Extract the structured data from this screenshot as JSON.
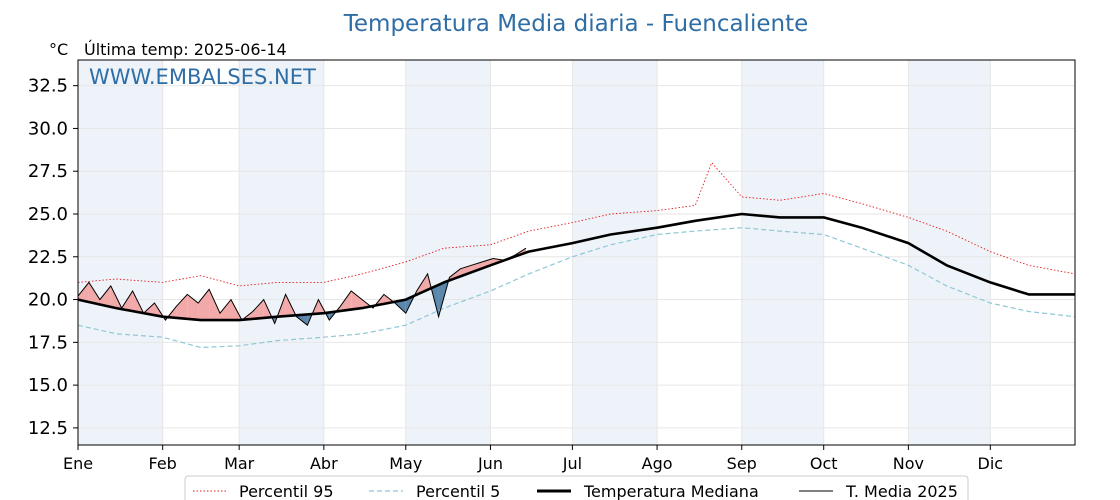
{
  "chart_data": {
    "type": "line",
    "title": "Temperatura Media diaria - Fuencaliente",
    "ylabel": "°C",
    "last_update": "Última temp: 2025-06-14",
    "watermark": "WWW.EMBALSES.NET",
    "ylim": [
      11.5,
      34.0
    ],
    "yticks": [
      "12.5",
      "15.0",
      "17.5",
      "20.0",
      "22.5",
      "25.0",
      "27.5",
      "30.0",
      "32.5"
    ],
    "ytick_values": [
      12.5,
      15.0,
      17.5,
      20.0,
      22.5,
      25.0,
      27.5,
      30.0,
      32.5
    ],
    "xlim": [
      1,
      366
    ],
    "months": [
      "Ene",
      "Feb",
      "Mar",
      "Abr",
      "May",
      "Jun",
      "Jul",
      "Ago",
      "Sep",
      "Oct",
      "Nov",
      "Dic"
    ],
    "month_start_days": [
      1,
      32,
      60,
      91,
      121,
      152,
      182,
      213,
      244,
      274,
      305,
      335
    ],
    "grid": true,
    "legend_position": "bottom-center",
    "shade_rule": "red fill where T. Media 2025 is above Temperatura Mediana, blue fill where below",
    "colors": {
      "title": "#2f6ea5",
      "band": "#eef3f9",
      "p95": "#e31a1c",
      "p5": "#8ec8d6",
      "median": "#000000",
      "current": "#000000",
      "above": "#f2a9a9",
      "below": "#5b87ad"
    },
    "series": [
      {
        "name": "Percentil 95",
        "style": "dotted-red",
        "x": [
          1,
          15,
          32,
          46,
          60,
          74,
          91,
          105,
          121,
          135,
          152,
          166,
          182,
          196,
          213,
          227,
          233,
          244,
          258,
          274,
          288,
          305,
          319,
          335,
          349,
          366
        ],
        "y": [
          21.0,
          21.2,
          21.0,
          21.4,
          20.8,
          21.0,
          21.0,
          21.5,
          22.2,
          23.0,
          23.2,
          24.0,
          24.5,
          25.0,
          25.2,
          25.5,
          28.0,
          26.0,
          25.8,
          26.2,
          25.6,
          24.8,
          24.0,
          22.8,
          22.0,
          21.5
        ]
      },
      {
        "name": "Percentil 5",
        "style": "dashed-lightblue",
        "x": [
          1,
          15,
          32,
          46,
          60,
          74,
          91,
          105,
          121,
          135,
          152,
          166,
          182,
          196,
          213,
          227,
          244,
          258,
          274,
          288,
          305,
          319,
          335,
          349,
          366
        ],
        "y": [
          18.5,
          18.0,
          17.8,
          17.2,
          17.3,
          17.6,
          17.8,
          18.0,
          18.5,
          19.5,
          20.5,
          21.5,
          22.5,
          23.2,
          23.8,
          24.0,
          24.2,
          24.0,
          23.8,
          23.0,
          22.0,
          20.8,
          19.8,
          19.3,
          19.0
        ]
      },
      {
        "name": "Temperatura Mediana",
        "style": "thick-black",
        "x": [
          1,
          15,
          32,
          46,
          60,
          74,
          91,
          105,
          121,
          135,
          152,
          166,
          182,
          196,
          213,
          227,
          244,
          258,
          274,
          288,
          305,
          319,
          335,
          349,
          366
        ],
        "y": [
          20.0,
          19.5,
          19.0,
          18.8,
          18.8,
          19.0,
          19.2,
          19.5,
          20.0,
          21.0,
          22.0,
          22.8,
          23.3,
          23.8,
          24.2,
          24.6,
          25.0,
          24.8,
          24.8,
          24.2,
          23.3,
          22.0,
          21.0,
          20.3,
          20.3
        ]
      },
      {
        "name": "T. Media 2025",
        "style": "thin-black",
        "x": [
          1,
          5,
          9,
          13,
          17,
          21,
          25,
          29,
          33,
          37,
          41,
          45,
          49,
          53,
          57,
          61,
          65,
          69,
          73,
          77,
          81,
          85,
          89,
          93,
          97,
          101,
          105,
          109,
          113,
          117,
          121,
          125,
          129,
          133,
          137,
          141,
          145,
          149,
          153,
          157,
          161,
          165
        ],
        "y": [
          20.2,
          21.0,
          20.0,
          20.8,
          19.5,
          20.5,
          19.2,
          19.8,
          18.8,
          19.6,
          20.3,
          19.8,
          20.6,
          19.2,
          20.0,
          18.8,
          19.3,
          20.0,
          18.6,
          20.3,
          19.0,
          18.5,
          20.0,
          18.8,
          19.6,
          20.5,
          20.0,
          19.5,
          20.3,
          19.8,
          19.2,
          20.5,
          21.5,
          19.0,
          21.3,
          21.8,
          22.0,
          22.2,
          22.4,
          22.3,
          22.6,
          23.0
        ]
      }
    ]
  }
}
